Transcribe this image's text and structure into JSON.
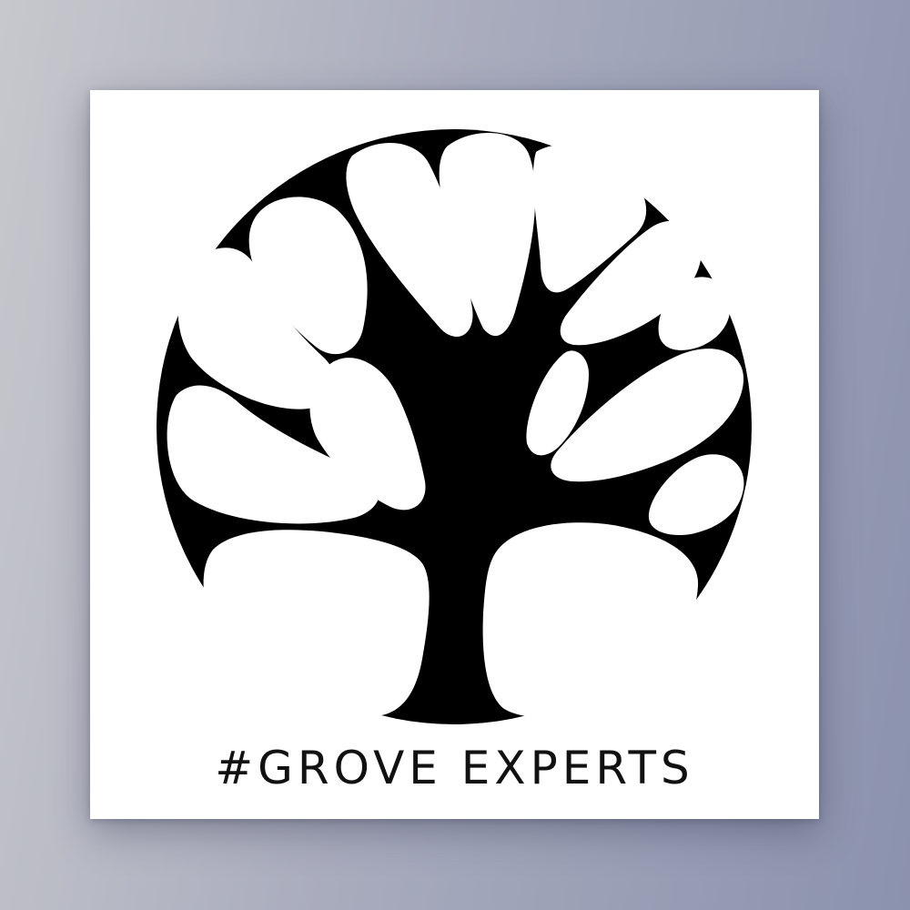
{
  "card": {
    "caption": "#GROVE EXPERTS"
  },
  "logo": {
    "icon": "tree-in-circle-icon",
    "ink_color": "#000000",
    "paper_color": "#ffffff"
  }
}
